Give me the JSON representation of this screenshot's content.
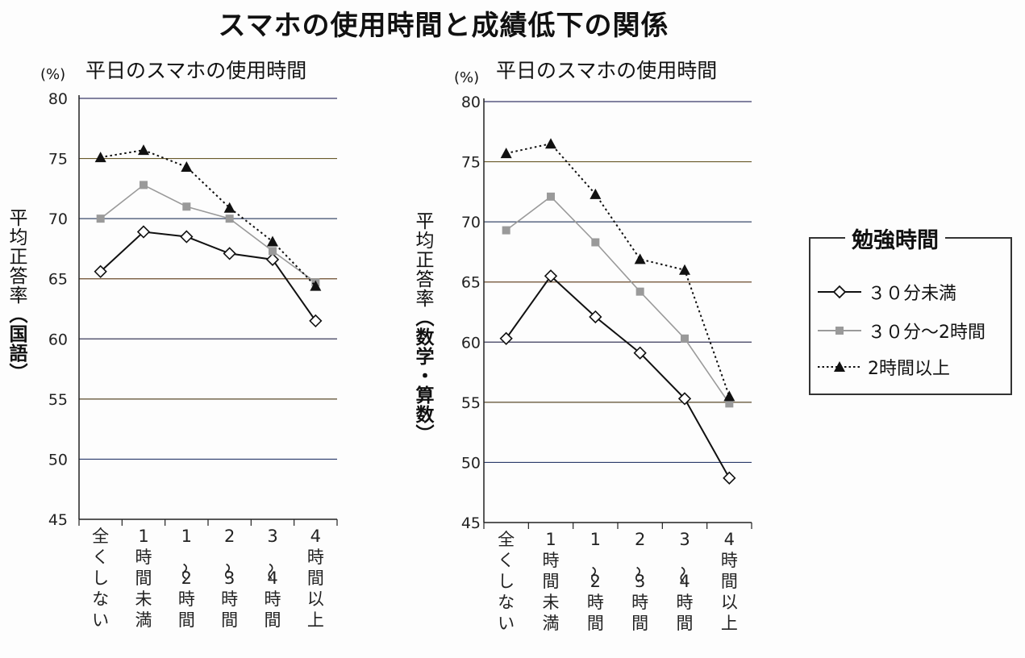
{
  "page_title": "スマホの使用時間と成績低下の関係",
  "legend": {
    "title": "勉強時間",
    "items": [
      {
        "label": "３０分未満",
        "style": "solid-diamond",
        "color": "#111111"
      },
      {
        "label": "３０分～2時間",
        "style": "gray-square",
        "color": "#999999"
      },
      {
        "label": "2時間以上",
        "style": "dotted-triangle",
        "color": "#111111"
      }
    ]
  },
  "chart_data": [
    {
      "type": "line",
      "title": "平日のスマホの使用時間",
      "unit": "(%)",
      "ylabel_main": "平均正答率",
      "ylabel_subject": "（国語）",
      "ylim": [
        45,
        80
      ],
      "yticks": [
        80,
        75,
        70,
        65,
        60,
        55,
        50,
        45
      ],
      "grid": true,
      "categories": [
        "全くしない",
        "1時間未満",
        "1~2時間",
        "2~3時間",
        "3~4時間",
        "4時間以上"
      ],
      "series": [
        {
          "name": "３０分未満",
          "values": [
            65.6,
            68.9,
            68.5,
            67.1,
            66.6,
            61.5
          ]
        },
        {
          "name": "３０分～2時間",
          "values": [
            70.0,
            72.8,
            71.0,
            70.0,
            67.3,
            64.7
          ]
        },
        {
          "name": "2時間以上",
          "values": [
            75.1,
            75.7,
            74.3,
            70.9,
            68.1,
            64.4
          ]
        }
      ]
    },
    {
      "type": "line",
      "title": "平日のスマホの使用時間",
      "unit": "(%)",
      "ylabel_main": "平均正答率",
      "ylabel_subject": "（数学・算数）",
      "ylim": [
        45,
        80
      ],
      "yticks": [
        80,
        75,
        70,
        65,
        60,
        55,
        50,
        45
      ],
      "grid": true,
      "categories": [
        "全くしない",
        "1時間未満",
        "1~2時間",
        "2~3時間",
        "3~4時間",
        "4時間以上"
      ],
      "series": [
        {
          "name": "３０分未満",
          "values": [
            60.3,
            65.5,
            62.1,
            59.1,
            55.3,
            48.7
          ]
        },
        {
          "name": "３０分～2時間",
          "values": [
            69.3,
            72.1,
            68.3,
            64.2,
            60.3,
            54.9
          ]
        },
        {
          "name": "2時間以上",
          "values": [
            75.7,
            76.5,
            72.3,
            66.9,
            66.0,
            55.5
          ]
        }
      ]
    }
  ]
}
